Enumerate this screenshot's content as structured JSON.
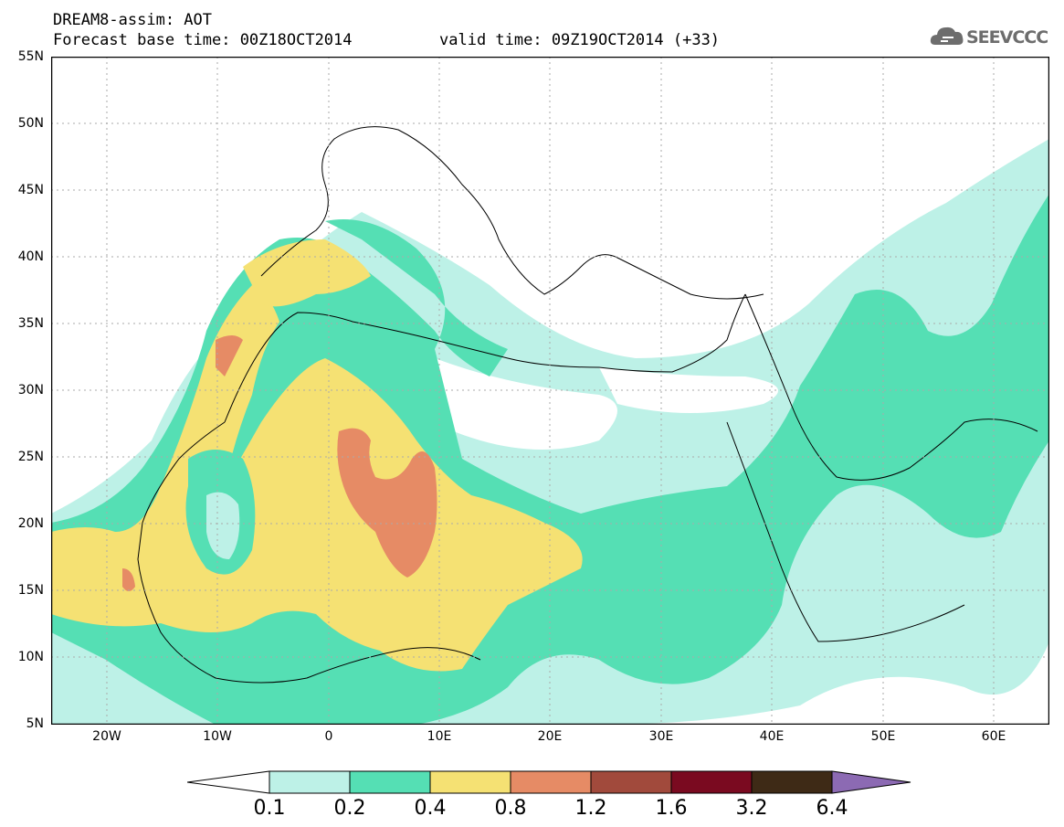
{
  "header": {
    "title": "DREAM8-assim: AOT",
    "base_time": "Forecast base time: 00Z18OCT2014",
    "valid_time": "valid time: 09Z19OCT2014 (+33)"
  },
  "logo": {
    "text": "SEEVCCC",
    "icon": "cloud-logo-icon"
  },
  "map": {
    "lat_labels": [
      "55N",
      "50N",
      "45N",
      "40N",
      "35N",
      "30N",
      "25N",
      "20N",
      "15N",
      "10N",
      "5N"
    ],
    "lon_labels": [
      "20W",
      "10W",
      "0",
      "10E",
      "20E",
      "30E",
      "40E",
      "50E",
      "60E"
    ],
    "lat_range": [
      5,
      55
    ],
    "lon_range": [
      -25,
      65
    ],
    "grid": true
  },
  "colorbar": {
    "labels": [
      "0.1",
      "0.2",
      "0.4",
      "0.8",
      "1.2",
      "1.6",
      "3.2",
      "6.4"
    ],
    "colors": [
      "#ffffff",
      "#bdf1e7",
      "#55dfb4",
      "#f5e173",
      "#e68b65",
      "#a14a3c",
      "#7a0a20",
      "#3e2a16",
      "#8c6ab3"
    ]
  }
}
